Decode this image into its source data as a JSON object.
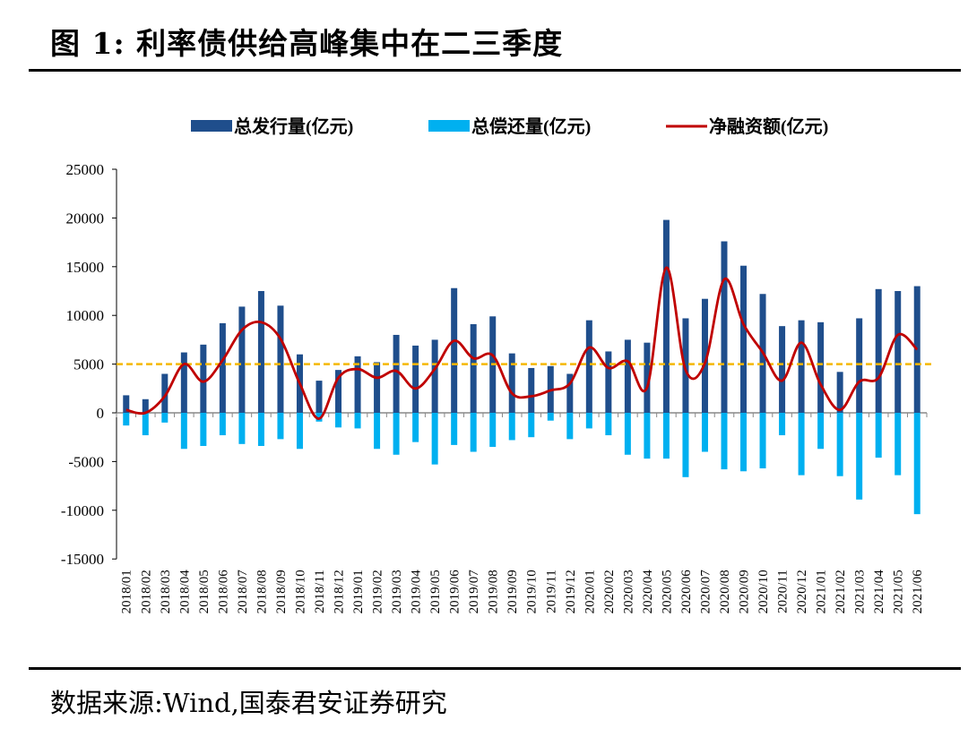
{
  "figure_title": "图 1:  利率债供给高峰集中在二三季度",
  "source_note": "数据来源:Wind,国泰君安证券研究",
  "colors": {
    "issuance": "#1f4e8c",
    "repayment": "#00b0f0",
    "net_financing": "#c00000",
    "reference_line": "#f5b800"
  },
  "chart_data": {
    "type": "bar",
    "title": "",
    "xlabel": "",
    "ylabel": "",
    "ylim": [
      -15000,
      25000
    ],
    "yticks": [
      25000,
      20000,
      15000,
      10000,
      5000,
      0,
      -5000,
      -10000,
      -15000
    ],
    "grid": false,
    "legend_position": "top",
    "reference_line": {
      "y": 5000,
      "style": "dashed"
    },
    "categories": [
      "2018/01",
      "2018/02",
      "2018/03",
      "2018/04",
      "2018/05",
      "2018/06",
      "2018/07",
      "2018/08",
      "2018/09",
      "2018/10",
      "2018/11",
      "2018/12",
      "2019/01",
      "2019/02",
      "2019/03",
      "2019/04",
      "2019/05",
      "2019/06",
      "2019/07",
      "2019/08",
      "2019/09",
      "2019/10",
      "2019/11",
      "2019/12",
      "2020/01",
      "2020/02",
      "2020/03",
      "2020/04",
      "2020/05",
      "2020/06",
      "2020/07",
      "2020/08",
      "2020/09",
      "2020/10",
      "2020/11",
      "2020/12",
      "2021/01",
      "2021/02",
      "2021/03",
      "2021/04",
      "2021/05",
      "2021/06"
    ],
    "series": [
      {
        "name": "总发行量(亿元)",
        "type": "bar",
        "values": [
          1800,
          1400,
          4000,
          6200,
          7000,
          9200,
          10900,
          12500,
          11000,
          6000,
          3300,
          4400,
          5800,
          5200,
          8000,
          6900,
          7500,
          12800,
          9100,
          9900,
          6100,
          4600,
          4800,
          4000,
          9500,
          6300,
          7500,
          7200,
          19800,
          9700,
          11700,
          17600,
          15100,
          12200,
          8900,
          9500,
          9300,
          4200,
          9700,
          12700,
          12500,
          13000
        ]
      },
      {
        "name": "总偿还量(亿元)",
        "type": "bar",
        "values": [
          -1300,
          -2300,
          -1000,
          -3700,
          -3400,
          -2300,
          -3200,
          -3400,
          -2700,
          -3700,
          -900,
          -1500,
          -1600,
          -3700,
          -4300,
          -3000,
          -5300,
          -3300,
          -4000,
          -3500,
          -2800,
          -2500,
          -800,
          -2700,
          -1600,
          -2300,
          -4300,
          -4700,
          -4700,
          -6600,
          -4000,
          -5800,
          -6000,
          -5700,
          -2300,
          -6400,
          -3700,
          -6500,
          -8900,
          -4600,
          -6400,
          -10400
        ]
      },
      {
        "name": "净融资额(亿元)",
        "type": "line",
        "values": [
          300,
          0,
          1700,
          5000,
          3200,
          5400,
          8500,
          9300,
          7600,
          3000,
          -600,
          3600,
          4500,
          3600,
          4300,
          2500,
          4500,
          7400,
          5600,
          5900,
          2000,
          1700,
          2300,
          3000,
          6700,
          4600,
          5300,
          2600,
          14900,
          4400,
          5100,
          13700,
          9100,
          6200,
          3300,
          7200,
          2900,
          300,
          3200,
          3600,
          8000,
          6500
        ]
      }
    ]
  }
}
